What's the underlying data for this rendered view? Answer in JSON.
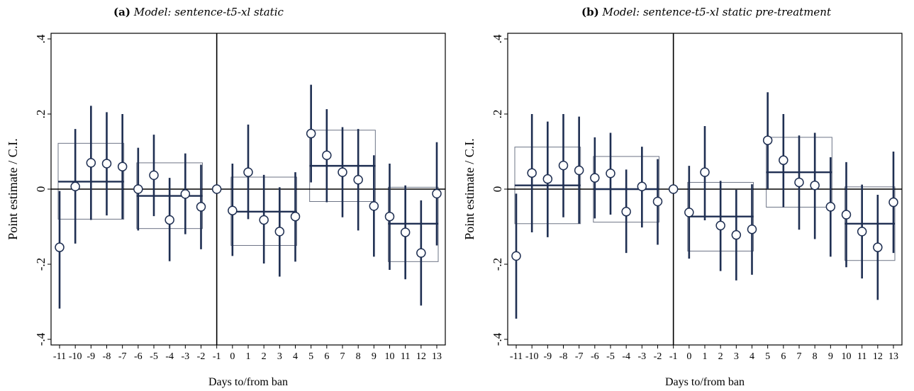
{
  "chart_data": [
    {
      "type": "scatter",
      "panel_tag": "(a)",
      "title": "Model: sentence-t5-xl static",
      "xlabel": "Days to/from ban",
      "ylabel": "Point estimate / C.I.",
      "x_ticks": [
        "-11",
        "-10",
        "-9",
        "-8",
        "-7",
        "-6",
        "-5",
        "-4",
        "-3",
        "-2",
        "-1",
        "0",
        "1",
        "2",
        "3",
        "4",
        "5",
        "6",
        "7",
        "8",
        "9",
        "10",
        "11",
        "12",
        "13"
      ],
      "y_ticks": [
        {
          "v": 0.4,
          "label": ".4"
        },
        {
          "v": 0.2,
          "label": ".2"
        },
        {
          "v": 0,
          "label": "0"
        },
        {
          "v": -0.2,
          "label": "-.2"
        },
        {
          "v": -0.4,
          "label": "-.4"
        }
      ],
      "ylim": [
        -0.415,
        0.415
      ],
      "ban_day": -1,
      "points": [
        {
          "x": -11,
          "y": -0.155,
          "lo": -0.318,
          "hi": -0.005
        },
        {
          "x": -10,
          "y": 0.007,
          "lo": -0.145,
          "hi": 0.16
        },
        {
          "x": -9,
          "y": 0.07,
          "lo": -0.082,
          "hi": 0.222
        },
        {
          "x": -8,
          "y": 0.068,
          "lo": -0.07,
          "hi": 0.205
        },
        {
          "x": -7,
          "y": 0.06,
          "lo": -0.08,
          "hi": 0.2
        },
        {
          "x": -6,
          "y": 0.0,
          "lo": -0.11,
          "hi": 0.11
        },
        {
          "x": -5,
          "y": 0.037,
          "lo": -0.072,
          "hi": 0.145
        },
        {
          "x": -4,
          "y": -0.082,
          "lo": -0.192,
          "hi": 0.03
        },
        {
          "x": -3,
          "y": -0.013,
          "lo": -0.12,
          "hi": 0.095
        },
        {
          "x": -2,
          "y": -0.047,
          "lo": -0.16,
          "hi": 0.065
        },
        {
          "x": -1,
          "y": 0.0
        },
        {
          "x": 0,
          "y": -0.057,
          "lo": -0.178,
          "hi": 0.068
        },
        {
          "x": 1,
          "y": 0.045,
          "lo": -0.08,
          "hi": 0.172
        },
        {
          "x": 2,
          "y": -0.082,
          "lo": -0.198,
          "hi": 0.038
        },
        {
          "x": 3,
          "y": -0.113,
          "lo": -0.233,
          "hi": 0.005
        },
        {
          "x": 4,
          "y": -0.073,
          "lo": -0.193,
          "hi": 0.045
        },
        {
          "x": 5,
          "y": 0.148,
          "lo": 0.018,
          "hi": 0.278
        },
        {
          "x": 6,
          "y": 0.09,
          "lo": -0.035,
          "hi": 0.213
        },
        {
          "x": 7,
          "y": 0.045,
          "lo": -0.075,
          "hi": 0.165
        },
        {
          "x": 8,
          "y": 0.025,
          "lo": -0.11,
          "hi": 0.16
        },
        {
          "x": 9,
          "y": -0.045,
          "lo": -0.18,
          "hi": 0.09
        },
        {
          "x": 10,
          "y": -0.073,
          "lo": -0.215,
          "hi": 0.068
        },
        {
          "x": 11,
          "y": -0.115,
          "lo": -0.24,
          "hi": 0.01
        },
        {
          "x": 12,
          "y": -0.17,
          "lo": -0.31,
          "hi": -0.03
        },
        {
          "x": 13,
          "y": -0.012,
          "lo": -0.15,
          "hi": 0.125
        }
      ],
      "groups": [
        {
          "x0": -11,
          "x1": -7,
          "est": 0.02,
          "lo": -0.08,
          "hi": 0.122
        },
        {
          "x0": -6,
          "x1": -2,
          "est": -0.018,
          "lo": -0.105,
          "hi": 0.07
        },
        {
          "x0": 0,
          "x1": 4,
          "est": -0.06,
          "lo": -0.15,
          "hi": 0.032
        },
        {
          "x0": 5,
          "x1": 9,
          "est": 0.062,
          "lo": -0.033,
          "hi": 0.157
        },
        {
          "x0": 10,
          "x1": 13,
          "est": -0.092,
          "lo": -0.193,
          "hi": 0.005
        }
      ]
    },
    {
      "type": "scatter",
      "panel_tag": "(b)",
      "title": "Model: sentence-t5-xl static pre-treatment",
      "xlabel": "Days to/from ban",
      "ylabel": "Point estimate / C.I.",
      "x_ticks": [
        "-11",
        "-10",
        "-9",
        "-8",
        "-7",
        "-6",
        "-5",
        "-4",
        "-3",
        "-2",
        "-1",
        "0",
        "1",
        "2",
        "3",
        "4",
        "5",
        "6",
        "7",
        "8",
        "9",
        "10",
        "11",
        "12",
        "13"
      ],
      "y_ticks": [
        {
          "v": 0.4,
          "label": ".4"
        },
        {
          "v": 0.2,
          "label": ".2"
        },
        {
          "v": 0,
          "label": "0"
        },
        {
          "v": -0.2,
          "label": "-.2"
        },
        {
          "v": -0.4,
          "label": "-.4"
        }
      ],
      "ylim": [
        -0.415,
        0.415
      ],
      "ban_day": -1,
      "points": [
        {
          "x": -11,
          "y": -0.178,
          "lo": -0.345,
          "hi": -0.012
        },
        {
          "x": -10,
          "y": 0.043,
          "lo": -0.115,
          "hi": 0.2
        },
        {
          "x": -9,
          "y": 0.027,
          "lo": -0.128,
          "hi": 0.18
        },
        {
          "x": -8,
          "y": 0.063,
          "lo": -0.075,
          "hi": 0.2
        },
        {
          "x": -7,
          "y": 0.05,
          "lo": -0.092,
          "hi": 0.193
        },
        {
          "x": -6,
          "y": 0.03,
          "lo": -0.078,
          "hi": 0.138
        },
        {
          "x": -5,
          "y": 0.042,
          "lo": -0.068,
          "hi": 0.15
        },
        {
          "x": -4,
          "y": -0.06,
          "lo": -0.17,
          "hi": 0.052
        },
        {
          "x": -3,
          "y": 0.007,
          "lo": -0.102,
          "hi": 0.113
        },
        {
          "x": -2,
          "y": -0.033,
          "lo": -0.148,
          "hi": 0.08
        },
        {
          "x": -1,
          "y": 0.0
        },
        {
          "x": 0,
          "y": -0.062,
          "lo": -0.185,
          "hi": 0.062
        },
        {
          "x": 1,
          "y": 0.045,
          "lo": -0.083,
          "hi": 0.168
        },
        {
          "x": 2,
          "y": -0.097,
          "lo": -0.218,
          "hi": 0.022
        },
        {
          "x": 3,
          "y": -0.122,
          "lo": -0.243,
          "hi": -0.002
        },
        {
          "x": 4,
          "y": -0.107,
          "lo": -0.228,
          "hi": 0.013
        },
        {
          "x": 5,
          "y": 0.13,
          "lo": 0.0,
          "hi": 0.258
        },
        {
          "x": 6,
          "y": 0.077,
          "lo": -0.048,
          "hi": 0.2
        },
        {
          "x": 7,
          "y": 0.018,
          "lo": -0.108,
          "hi": 0.143
        },
        {
          "x": 8,
          "y": 0.01,
          "lo": -0.133,
          "hi": 0.15
        },
        {
          "x": 9,
          "y": -0.047,
          "lo": -0.18,
          "hi": 0.085
        },
        {
          "x": 10,
          "y": -0.068,
          "lo": -0.208,
          "hi": 0.072
        },
        {
          "x": 11,
          "y": -0.113,
          "lo": -0.238,
          "hi": 0.012
        },
        {
          "x": 12,
          "y": -0.155,
          "lo": -0.295,
          "hi": -0.015
        },
        {
          "x": 13,
          "y": -0.035,
          "lo": -0.17,
          "hi": 0.1
        }
      ],
      "groups": [
        {
          "x0": -11,
          "x1": -7,
          "est": 0.01,
          "lo": -0.092,
          "hi": 0.112
        },
        {
          "x0": -6,
          "x1": -2,
          "est": 0.0,
          "lo": -0.088,
          "hi": 0.087
        },
        {
          "x0": 0,
          "x1": 4,
          "est": -0.073,
          "lo": -0.165,
          "hi": 0.018
        },
        {
          "x0": 5,
          "x1": 9,
          "est": 0.045,
          "lo": -0.048,
          "hi": 0.138
        },
        {
          "x0": 10,
          "x1": 13,
          "est": -0.092,
          "lo": -0.19,
          "hi": 0.006
        }
      ]
    }
  ],
  "colors": {
    "marks": "#1f2f52",
    "box": "#6d7486",
    "axis": "#000000"
  }
}
